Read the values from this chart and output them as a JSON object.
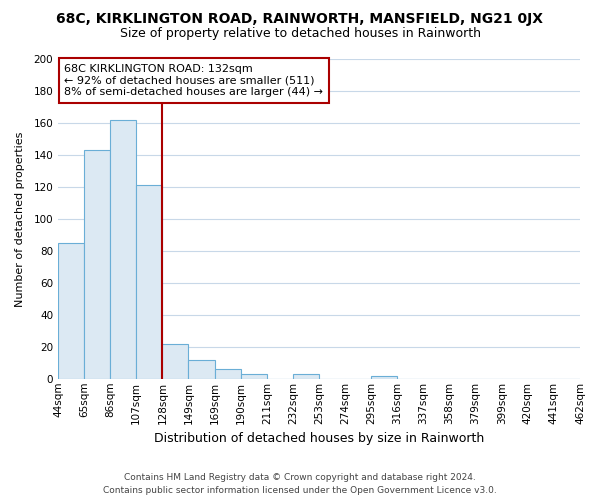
{
  "title": "68C, KIRKLINGTON ROAD, RAINWORTH, MANSFIELD, NG21 0JX",
  "subtitle": "Size of property relative to detached houses in Rainworth",
  "xlabel": "Distribution of detached houses by size in Rainworth",
  "ylabel": "Number of detached properties",
  "bar_values": [
    85,
    143,
    162,
    121,
    22,
    12,
    6,
    3,
    0,
    3,
    0,
    0,
    2,
    0,
    0,
    0,
    0,
    0,
    0,
    0
  ],
  "bar_labels": [
    "44sqm",
    "65sqm",
    "86sqm",
    "107sqm",
    "128sqm",
    "149sqm",
    "169sqm",
    "190sqm",
    "211sqm",
    "232sqm",
    "253sqm",
    "274sqm",
    "295sqm",
    "316sqm",
    "337sqm",
    "358sqm",
    "379sqm",
    "399sqm",
    "420sqm",
    "441sqm",
    "462sqm"
  ],
  "bar_color_fill": "#dce9f3",
  "bar_color_edge": "#6aaed6",
  "vline_color": "#aa0000",
  "box_edge_color": "#aa0000",
  "annotation_title": "68C KIRKLINGTON ROAD: 132sqm",
  "annotation_line1": "← 92% of detached houses are smaller (511)",
  "annotation_line2": "8% of semi-detached houses are larger (44) →",
  "vline_bar_index": 3.5,
  "ylim": [
    0,
    200
  ],
  "yticks": [
    0,
    20,
    40,
    60,
    80,
    100,
    120,
    140,
    160,
    180,
    200
  ],
  "footer_line1": "Contains HM Land Registry data © Crown copyright and database right 2024.",
  "footer_line2": "Contains public sector information licensed under the Open Government Licence v3.0.",
  "background_color": "#ffffff",
  "grid_color": "#c8d8e8",
  "title_fontsize": 10,
  "subtitle_fontsize": 9,
  "xlabel_fontsize": 9,
  "ylabel_fontsize": 8,
  "tick_fontsize": 7.5,
  "annotation_fontsize": 8
}
